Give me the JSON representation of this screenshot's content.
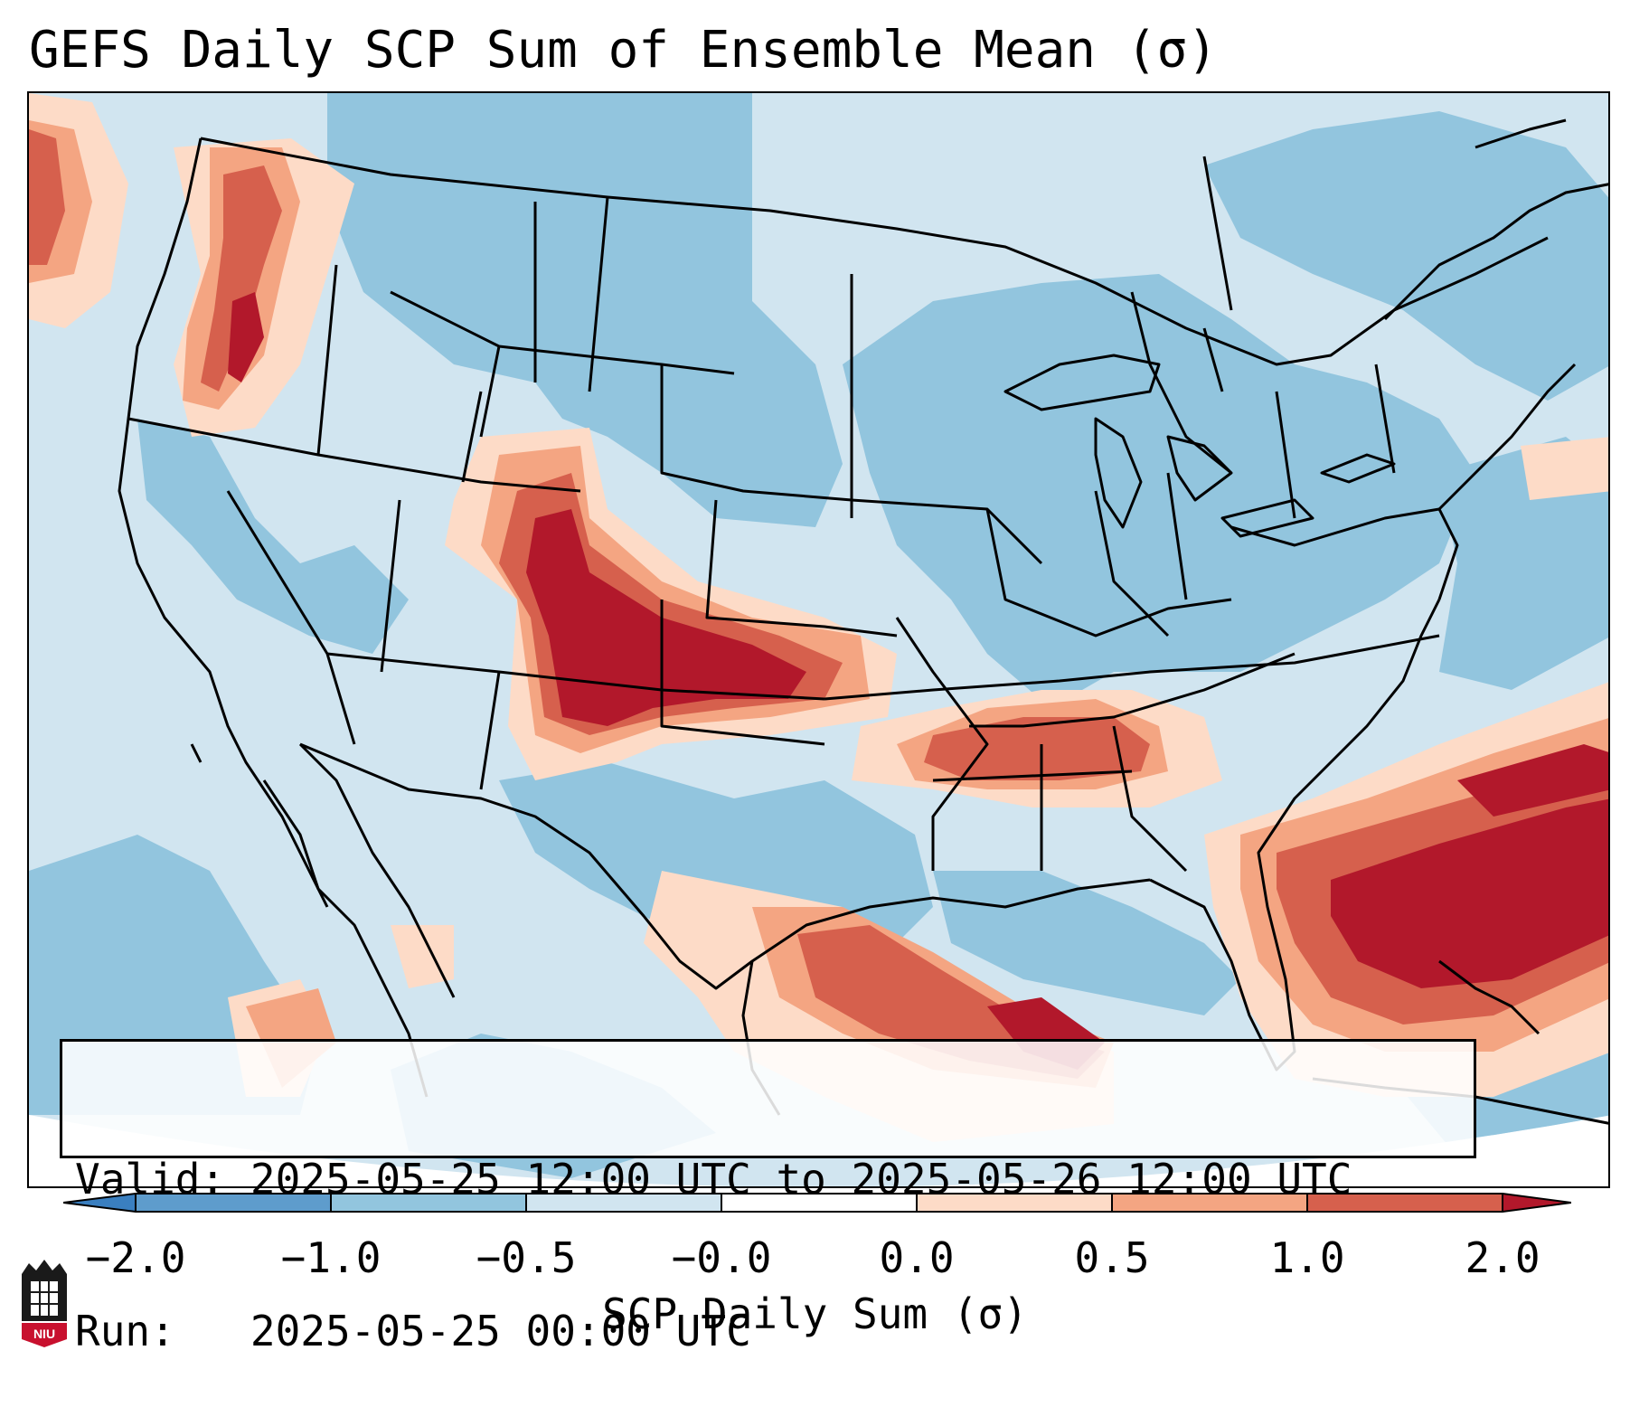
{
  "title": "GEFS Daily SCP Sum of Ensemble Mean (σ)",
  "valid_label": "Valid:",
  "valid_value": "2025-05-25 12:00 UTC to 2025-05-26 12:00 UTC",
  "run_label": "Run:  ",
  "run_value": "2025-05-25 00:00 UTC",
  "colorbar": {
    "label": "SCP Daily Sum (σ)",
    "ticks": [
      "−2.0",
      "−1.0",
      "−0.5",
      "−0.0",
      "0.0",
      "0.5",
      "1.0",
      "2.0"
    ],
    "colors": [
      "#3a7fc0",
      "#5e9ccc",
      "#92c5de",
      "#d1e5f0",
      "#fddbc7",
      "#f4a582",
      "#d6604d",
      "#b2182b"
    ],
    "extend": "both"
  },
  "logo": {
    "name": "NIU",
    "text": "NIU"
  }
}
